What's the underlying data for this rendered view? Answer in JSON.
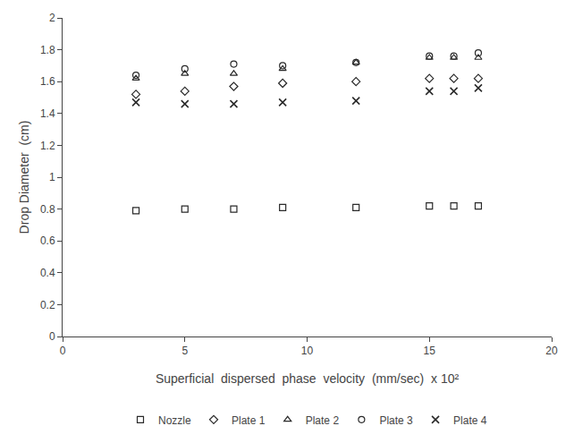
{
  "chart_data": {
    "type": "scatter",
    "xlabel": "Superficial  dispersed  phase  velocity  (mm/sec)  x 10²",
    "ylabel": "Drop Diameter  (cm)",
    "x": [
      3,
      5,
      7,
      9,
      12,
      15,
      16,
      17
    ],
    "series": [
      {
        "name": "Nozzle",
        "color": "#2a2a2a",
        "marker": "square",
        "values": [
          0.79,
          0.8,
          0.8,
          0.81,
          0.81,
          0.82,
          0.82,
          0.82
        ]
      },
      {
        "name": "Plate 1",
        "color": "#2a2a2a",
        "marker": "diamond",
        "values": [
          1.52,
          1.54,
          1.57,
          1.59,
          1.6,
          1.62,
          1.62,
          1.62
        ]
      },
      {
        "name": "Plate 2",
        "color": "#2a2a2a",
        "marker": "triangle-up",
        "values": [
          1.62,
          1.65,
          1.65,
          1.68,
          1.72,
          1.75,
          1.75,
          1.75
        ]
      },
      {
        "name": "Plate 3",
        "color": "#2a2a2a",
        "marker": "circle",
        "values": [
          1.64,
          1.68,
          1.71,
          1.7,
          1.72,
          1.76,
          1.76,
          1.78
        ]
      },
      {
        "name": "Plate 4",
        "color": "#2a2a2a",
        "marker": "x",
        "values": [
          1.47,
          1.46,
          1.46,
          1.47,
          1.48,
          1.54,
          1.54,
          1.56
        ]
      }
    ],
    "xlim": [
      0,
      20
    ],
    "ylim": [
      0,
      2
    ],
    "xticks": [
      0,
      5,
      10,
      15,
      20
    ],
    "yticks": [
      0,
      0.2,
      0.4,
      0.6,
      0.8,
      1,
      1.2,
      1.4,
      1.6,
      1.8,
      2
    ],
    "grid": false,
    "legend": "bottom"
  }
}
